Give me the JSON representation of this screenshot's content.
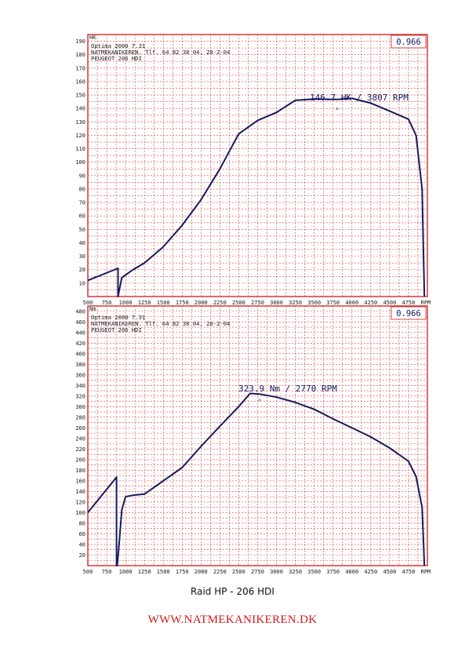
{
  "charts": {
    "colors": {
      "grid": "#e43c3c",
      "frame": "#d11a1a",
      "curve": "#151b5e",
      "text": "#1a1a1a"
    },
    "hp": {
      "unit_label": "HK",
      "correction": "0.966",
      "header_lines": [
        "Optima 2000 7.31",
        "NATMEKANIKEREN. Tlf. 64 82 38 04, 28-2-04",
        "PEUGEOT 206 HDI"
      ],
      "peak_label": "146.7 HK / 3807 RPM",
      "y_ticks": [
        "10",
        "20",
        "30",
        "40",
        "50",
        "60",
        "70",
        "80",
        "90",
        "100",
        "110",
        "120",
        "130",
        "140",
        "150",
        "160",
        "170",
        "180",
        "190"
      ],
      "x_ticks": [
        "500",
        "750",
        "1000",
        "1250",
        "1500",
        "1750",
        "2000",
        "2250",
        "2500",
        "2750",
        "3000",
        "3250",
        "3500",
        "3750",
        "4000",
        "4250",
        "4500",
        "4750",
        "RPM"
      ]
    },
    "nm": {
      "unit_label": "Nm",
      "correction": "0.966",
      "header_lines": [
        "Optima 2000 7.31",
        "NATMEKANIKEREN. Tlf. 64 82 38 04, 28-2-04",
        "PEUGEOT 206 HDI"
      ],
      "peak_label": "323.9 Nm / 2770 RPM",
      "y_ticks": [
        "20",
        "40",
        "60",
        "80",
        "100",
        "120",
        "140",
        "160",
        "180",
        "200",
        "220",
        "240",
        "260",
        "280",
        "300",
        "320",
        "340",
        "360",
        "380",
        "400",
        "420",
        "440",
        "460",
        "480"
      ],
      "x_ticks": [
        "500",
        "750",
        "1000",
        "1250",
        "1500",
        "1750",
        "2000",
        "2250",
        "2500",
        "2750",
        "3000",
        "3250",
        "3500",
        "3750",
        "4000",
        "4250",
        "4500",
        "4750",
        "RPM"
      ]
    }
  },
  "caption": "Raid HP - 206 HDI",
  "website": "WWW.NATMEKANIKEREN.DK",
  "chart_data": [
    {
      "type": "line",
      "xlabel": "RPM",
      "ylabel": "HK",
      "xlim": [
        500,
        5000
      ],
      "ylim": [
        0,
        195
      ],
      "grid": true,
      "annotations": [
        "146.7 HK / 3807 RPM"
      ],
      "series": [
        {
          "x": [
            500,
            900,
            900,
            950,
            1100,
            1250,
            1500,
            1750,
            2000,
            2250,
            2500,
            2750,
            3000,
            3250,
            3500,
            3807,
            4000,
            4250,
            4500,
            4750,
            4850,
            4930,
            4960
          ],
          "y": [
            12,
            21,
            0,
            14,
            20,
            25,
            37,
            53,
            72,
            95,
            121,
            131,
            137,
            146,
            147,
            146.7,
            147.5,
            144,
            138,
            132,
            120,
            80,
            0
          ]
        }
      ]
    },
    {
      "type": "line",
      "xlabel": "RPM",
      "ylabel": "Nm",
      "xlim": [
        500,
        5000
      ],
      "ylim": [
        0,
        490
      ],
      "grid": true,
      "annotations": [
        "323.9 Nm / 2770 RPM"
      ],
      "series": [
        {
          "x": [
            500,
            880,
            880,
            890,
            920,
            950,
            1000,
            1100,
            1250,
            1500,
            1750,
            2000,
            2250,
            2500,
            2650,
            2770,
            3000,
            3250,
            3500,
            3750,
            4000,
            4250,
            4500,
            4750,
            4850,
            4930,
            4960
          ],
          "y": [
            100,
            167,
            0,
            0,
            50,
            105,
            130,
            133,
            135,
            160,
            185,
            225,
            263,
            300,
            325,
            323.9,
            318,
            308,
            295,
            277,
            260,
            243,
            222,
            197,
            168,
            110,
            0
          ]
        }
      ]
    }
  ]
}
